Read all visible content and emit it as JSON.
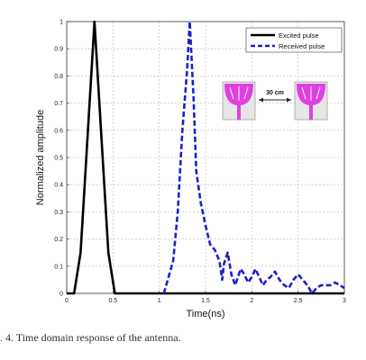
{
  "chart_data": {
    "type": "line",
    "xlabel": "Time(ns)",
    "ylabel": "Normalized amplitude",
    "xlim": [
      0,
      3
    ],
    "ylim": [
      0,
      1
    ],
    "x_ticks": [
      0,
      0.5,
      1,
      1.5,
      2,
      2.5,
      3
    ],
    "x_tick_labels": [
      "0",
      "0.5",
      "1",
      "1.5",
      "2",
      "2.5",
      "3"
    ],
    "y_ticks": [
      0,
      0.1,
      0.2,
      0.3,
      0.4,
      0.5,
      0.6,
      0.7,
      0.8,
      0.9,
      1
    ],
    "y_tick_labels": [
      "0",
      "0.1",
      "0.2",
      "0.3",
      "0.4",
      "0.5",
      "0.6",
      "0.7",
      "0.8",
      "0.9",
      "1"
    ],
    "grid": true,
    "legend_position": "top-right",
    "series": [
      {
        "name": "Excited pulse",
        "color": "#000000",
        "style": "solid",
        "points": [
          [
            0,
            0
          ],
          [
            0.08,
            0
          ],
          [
            0.15,
            0.15
          ],
          [
            0.3,
            1.0
          ],
          [
            0.45,
            0.15
          ],
          [
            0.52,
            0
          ],
          [
            3,
            0
          ]
        ]
      },
      {
        "name": "Received pulse",
        "color": "#1f1fc8",
        "style": "dashed",
        "points": [
          [
            1.05,
            0
          ],
          [
            1.15,
            0.12
          ],
          [
            1.2,
            0.3
          ],
          [
            1.25,
            0.6
          ],
          [
            1.3,
            0.82
          ],
          [
            1.33,
            1.0
          ],
          [
            1.37,
            0.72
          ],
          [
            1.4,
            0.45
          ],
          [
            1.45,
            0.33
          ],
          [
            1.5,
            0.25
          ],
          [
            1.55,
            0.18
          ],
          [
            1.6,
            0.16
          ],
          [
            1.65,
            0.12
          ],
          [
            1.68,
            0.05
          ],
          [
            1.7,
            0.11
          ],
          [
            1.74,
            0.15
          ],
          [
            1.78,
            0.07
          ],
          [
            1.82,
            0.03
          ],
          [
            1.85,
            0.06
          ],
          [
            1.88,
            0.09
          ],
          [
            1.92,
            0.07
          ],
          [
            1.96,
            0.04
          ],
          [
            2.0,
            0.06
          ],
          [
            2.04,
            0.09
          ],
          [
            2.08,
            0.06
          ],
          [
            2.12,
            0.03
          ],
          [
            2.16,
            0.05
          ],
          [
            2.2,
            0.06
          ],
          [
            2.25,
            0.08
          ],
          [
            2.3,
            0.05
          ],
          [
            2.35,
            0.03
          ],
          [
            2.4,
            0.02
          ],
          [
            2.45,
            0.05
          ],
          [
            2.5,
            0.07
          ],
          [
            2.55,
            0.05
          ],
          [
            2.6,
            0.03
          ],
          [
            2.65,
            0.0
          ],
          [
            2.7,
            0.02
          ],
          [
            2.75,
            0.03
          ],
          [
            2.8,
            0.03
          ],
          [
            2.85,
            0.03
          ],
          [
            2.9,
            0.04
          ],
          [
            2.95,
            0.03
          ],
          [
            3.0,
            0.02
          ]
        ]
      }
    ],
    "inset": {
      "label": "30 cm"
    }
  },
  "caption": ". 4.   Time domain response of the antenna.",
  "colors": {
    "background": "#ffffff",
    "grid": "#b8b8b8",
    "antenna": "#e040e0",
    "substrate": "#e6e6e6"
  }
}
